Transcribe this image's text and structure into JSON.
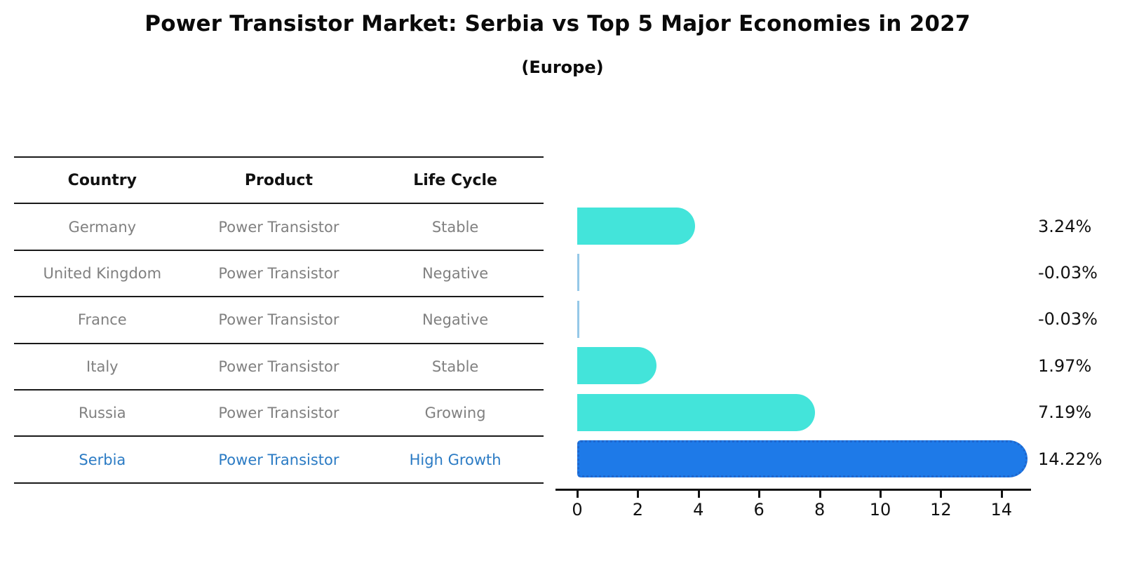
{
  "title": "Power Transistor Market: Serbia vs Top 5 Major Economies in 2027",
  "subtitle": "(Europe)",
  "table": {
    "headers": [
      "Country",
      "Product",
      "Life Cycle"
    ],
    "rows": [
      {
        "country": "Germany",
        "product": "Power Transistor",
        "life_cycle": "Stable",
        "highlight": false
      },
      {
        "country": "United Kingdom",
        "product": "Power Transistor",
        "life_cycle": "Negative",
        "highlight": false
      },
      {
        "country": "France",
        "product": "Power Transistor",
        "life_cycle": "Negative",
        "highlight": false
      },
      {
        "country": "Italy",
        "product": "Power Transistor",
        "life_cycle": "Stable",
        "highlight": false
      },
      {
        "country": "Russia",
        "product": "Power Transistor",
        "life_cycle": "Growing",
        "highlight": false
      },
      {
        "country": "Serbia",
        "product": "Power Transistor",
        "life_cycle": "High Growth",
        "highlight": true
      }
    ]
  },
  "chart_data": {
    "type": "bar",
    "orientation": "horizontal",
    "title": "Power Transistor Market: Serbia vs Top 5 Major Economies in 2027 (Europe)",
    "categories": [
      "Germany",
      "United Kingdom",
      "France",
      "Italy",
      "Russia",
      "Serbia"
    ],
    "values": [
      3.24,
      -0.03,
      -0.03,
      1.97,
      7.19,
      14.22
    ],
    "value_labels": [
      "3.24%",
      "-0.03%",
      "-0.03%",
      "1.97%",
      "7.19%",
      "14.22%"
    ],
    "x_tick_labels": [
      "0",
      "2",
      "4",
      "6",
      "8",
      "10",
      "12",
      "14"
    ],
    "x_ticks": [
      0,
      2,
      4,
      6,
      8,
      10,
      12,
      14
    ],
    "xlim": [
      -0.75,
      15.0
    ],
    "grid": false,
    "legend": "none",
    "highlight_index": 5,
    "colors": {
      "bar": "#43e4da",
      "highlight_bar": "#1e7ae8",
      "highlight_edge": "#1f66cc",
      "negative_bar": "#95c8e8",
      "axis": "#111111",
      "value_label": "#111111"
    }
  },
  "text_colors": {
    "header": "#111111",
    "row": "#808080",
    "highlight_row": "#2b7bc4"
  }
}
